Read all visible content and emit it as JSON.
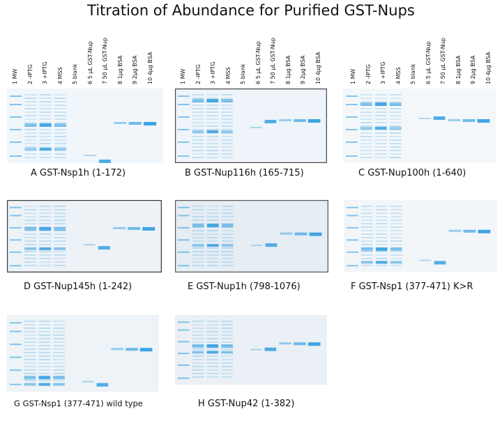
{
  "title": "Titration of Abundance for Purified GST-Nups",
  "lane_labels": [
    "1  MW",
    "2  -IPTG",
    "3  +IPTG",
    "4  MSS",
    "5  blank",
    "6  5 µL GST-Nup",
    "7  50 µL GST-Nup",
    "8  1µg BSA",
    "9  2µg BSA",
    "10  4µg BSA"
  ],
  "panels": [
    {
      "id": "A",
      "caption": "A  GST-Nsp1h (1-172)",
      "bg": "#f1f6fb",
      "edge": "#f7fafc"
    },
    {
      "id": "B",
      "caption": "B  GST-Nup116h (165-715)",
      "bg": "#eef4f9",
      "edge": "#4a4a4a"
    },
    {
      "id": "C",
      "caption": "C  GST-Nup100h (1-640)",
      "bg": "#f3f7fa",
      "edge": "#f7fafc"
    },
    {
      "id": "D",
      "caption": "D  GST-Nup145h (1-242)",
      "bg": "#edf2f7",
      "edge": "#3c3c3c"
    },
    {
      "id": "E",
      "caption": "E  GST-Nup1h (798-1076)",
      "bg": "#e6edf3",
      "edge": "#5a5a5a"
    },
    {
      "id": "F",
      "caption": "F  GST-Nsp1 (377-471) K>R",
      "bg": "#f2f6f9",
      "edge": "#f7fafc"
    },
    {
      "id": "G",
      "caption": "G  GST-Nsp1 (377-471) wild type",
      "bg": "#edf3f7",
      "edge": "#f7fafc"
    },
    {
      "id": "H",
      "caption": "H  GST-Nup42 (1-382)",
      "bg": "#eaf0f5",
      "edge": "#f7fafc"
    }
  ],
  "colors": {
    "stain": "#2a9be0",
    "stain_light": "#86c4ec"
  }
}
